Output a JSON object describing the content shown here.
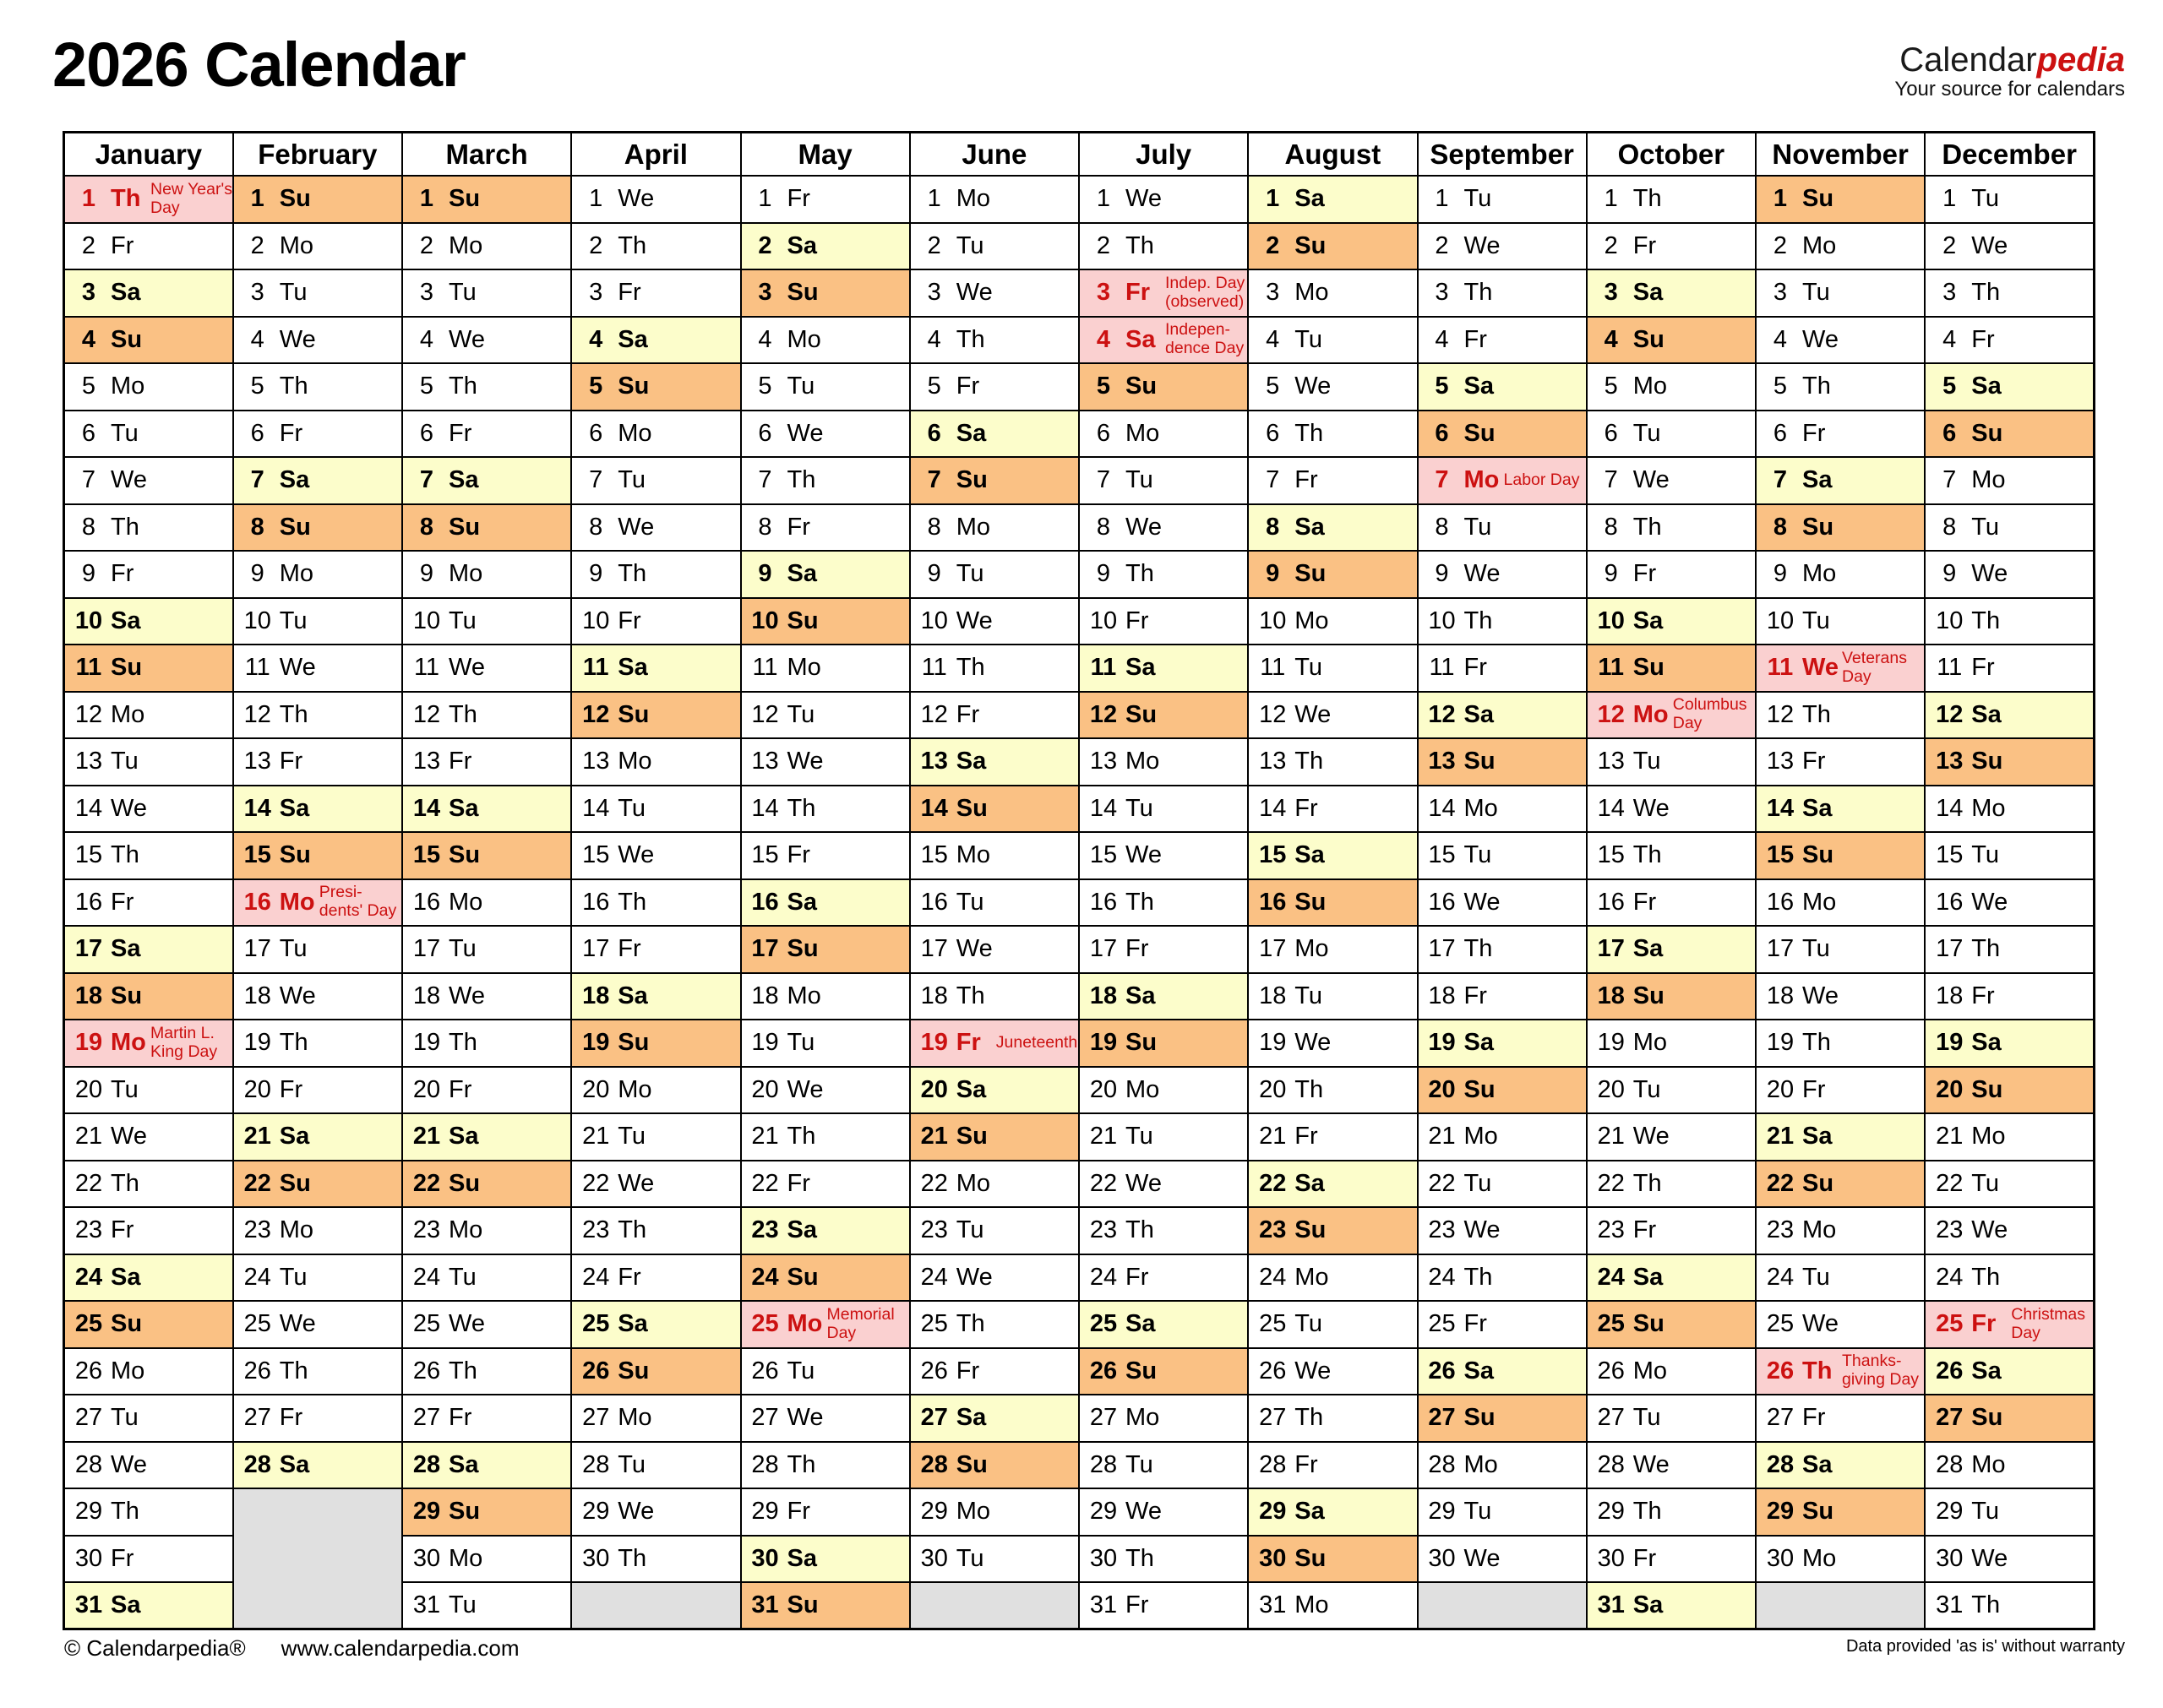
{
  "page": {
    "title": "2026 Calendar",
    "logo": {
      "part1": "Calendar",
      "part2": "pedia",
      "tagline": "Your source for calendars"
    },
    "footer": {
      "copyright": "© Calendarpedia®",
      "url": "www.calendarpedia.com",
      "disclaimer": "Data provided 'as is' without warranty"
    }
  },
  "colors": {
    "saturday_bg": "#FCFDCB",
    "sunday_bg": "#FAC184",
    "holiday_bg": "#FAD0D0",
    "holiday_text": "#CC1111",
    "filler_bg": "#E0E0E0",
    "border": "#000000",
    "logo_accent": "#CC1111"
  },
  "calendar": {
    "year": "2026",
    "max_rows": 31,
    "months": [
      {
        "name": "January",
        "days": [
          "Th",
          "Fr",
          "Sa",
          "Su",
          "Mo",
          "Tu",
          "We",
          "Th",
          "Fr",
          "Sa",
          "Su",
          "Mo",
          "Tu",
          "We",
          "Th",
          "Fr",
          "Sa",
          "Su",
          "Mo",
          "Tu",
          "We",
          "Th",
          "Fr",
          "Sa",
          "Su",
          "Mo",
          "Tu",
          "We",
          "Th",
          "Fr",
          "Sa"
        ],
        "holidays": {
          "1": [
            "New Year's",
            "Day"
          ],
          "19": [
            "Martin L.",
            "King Day"
          ]
        }
      },
      {
        "name": "February",
        "days": [
          "Su",
          "Mo",
          "Tu",
          "We",
          "Th",
          "Fr",
          "Sa",
          "Su",
          "Mo",
          "Tu",
          "We",
          "Th",
          "Fr",
          "Sa",
          "Su",
          "Mo",
          "Tu",
          "We",
          "Th",
          "Fr",
          "Sa",
          "Su",
          "Mo",
          "Tu",
          "We",
          "Th",
          "Fr",
          "Sa"
        ],
        "holidays": {
          "16": [
            "Presi-",
            "dents' Day"
          ]
        }
      },
      {
        "name": "March",
        "days": [
          "Su",
          "Mo",
          "Tu",
          "We",
          "Th",
          "Fr",
          "Sa",
          "Su",
          "Mo",
          "Tu",
          "We",
          "Th",
          "Fr",
          "Sa",
          "Su",
          "Mo",
          "Tu",
          "We",
          "Th",
          "Fr",
          "Sa",
          "Su",
          "Mo",
          "Tu",
          "We",
          "Th",
          "Fr",
          "Sa",
          "Su",
          "Mo",
          "Tu"
        ],
        "holidays": {}
      },
      {
        "name": "April",
        "days": [
          "We",
          "Th",
          "Fr",
          "Sa",
          "Su",
          "Mo",
          "Tu",
          "We",
          "Th",
          "Fr",
          "Sa",
          "Su",
          "Mo",
          "Tu",
          "We",
          "Th",
          "Fr",
          "Sa",
          "Su",
          "Mo",
          "Tu",
          "We",
          "Th",
          "Fr",
          "Sa",
          "Su",
          "Mo",
          "Tu",
          "We",
          "Th"
        ],
        "holidays": {}
      },
      {
        "name": "May",
        "days": [
          "Fr",
          "Sa",
          "Su",
          "Mo",
          "Tu",
          "We",
          "Th",
          "Fr",
          "Sa",
          "Su",
          "Mo",
          "Tu",
          "We",
          "Th",
          "Fr",
          "Sa",
          "Su",
          "Mo",
          "Tu",
          "We",
          "Th",
          "Fr",
          "Sa",
          "Su",
          "Mo",
          "Tu",
          "We",
          "Th",
          "Fr",
          "Sa",
          "Su"
        ],
        "holidays": {
          "25": [
            "Memorial",
            "Day"
          ]
        }
      },
      {
        "name": "June",
        "days": [
          "Mo",
          "Tu",
          "We",
          "Th",
          "Fr",
          "Sa",
          "Su",
          "Mo",
          "Tu",
          "We",
          "Th",
          "Fr",
          "Sa",
          "Su",
          "Mo",
          "Tu",
          "We",
          "Th",
          "Fr",
          "Sa",
          "Su",
          "Mo",
          "Tu",
          "We",
          "Th",
          "Fr",
          "Sa",
          "Su",
          "Mo",
          "Tu"
        ],
        "holidays": {
          "19": [
            "Juneteenth"
          ]
        }
      },
      {
        "name": "July",
        "days": [
          "We",
          "Th",
          "Fr",
          "Sa",
          "Su",
          "Mo",
          "Tu",
          "We",
          "Th",
          "Fr",
          "Sa",
          "Su",
          "Mo",
          "Tu",
          "We",
          "Th",
          "Fr",
          "Sa",
          "Su",
          "Mo",
          "Tu",
          "We",
          "Th",
          "Fr",
          "Sa",
          "Su",
          "Mo",
          "Tu",
          "We",
          "Th",
          "Fr"
        ],
        "holidays": {
          "3": [
            "Indep. Day",
            "(observed)"
          ],
          "4": [
            "Indepen-",
            "dence Day"
          ]
        }
      },
      {
        "name": "August",
        "days": [
          "Sa",
          "Su",
          "Mo",
          "Tu",
          "We",
          "Th",
          "Fr",
          "Sa",
          "Su",
          "Mo",
          "Tu",
          "We",
          "Th",
          "Fr",
          "Sa",
          "Su",
          "Mo",
          "Tu",
          "We",
          "Th",
          "Fr",
          "Sa",
          "Su",
          "Mo",
          "Tu",
          "We",
          "Th",
          "Fr",
          "Sa",
          "Su",
          "Mo"
        ],
        "holidays": {}
      },
      {
        "name": "September",
        "days": [
          "Tu",
          "We",
          "Th",
          "Fr",
          "Sa",
          "Su",
          "Mo",
          "Tu",
          "We",
          "Th",
          "Fr",
          "Sa",
          "Su",
          "Mo",
          "Tu",
          "We",
          "Th",
          "Fr",
          "Sa",
          "Su",
          "Mo",
          "Tu",
          "We",
          "Th",
          "Fr",
          "Sa",
          "Su",
          "Mo",
          "Tu",
          "We"
        ],
        "holidays": {
          "7": [
            "Labor Day"
          ]
        }
      },
      {
        "name": "October",
        "days": [
          "Th",
          "Fr",
          "Sa",
          "Su",
          "Mo",
          "Tu",
          "We",
          "Th",
          "Fr",
          "Sa",
          "Su",
          "Mo",
          "Tu",
          "We",
          "Th",
          "Fr",
          "Sa",
          "Su",
          "Mo",
          "Tu",
          "We",
          "Th",
          "Fr",
          "Sa",
          "Su",
          "Mo",
          "Tu",
          "We",
          "Th",
          "Fr",
          "Sa"
        ],
        "holidays": {
          "12": [
            "Columbus",
            "Day"
          ]
        }
      },
      {
        "name": "November",
        "days": [
          "Su",
          "Mo",
          "Tu",
          "We",
          "Th",
          "Fr",
          "Sa",
          "Su",
          "Mo",
          "Tu",
          "We",
          "Th",
          "Fr",
          "Sa",
          "Su",
          "Mo",
          "Tu",
          "We",
          "Th",
          "Fr",
          "Sa",
          "Su",
          "Mo",
          "Tu",
          "We",
          "Th",
          "Fr",
          "Sa",
          "Su",
          "Mo"
        ],
        "holidays": {
          "11": [
            "Veterans",
            "Day"
          ],
          "26": [
            "Thanks-",
            "giving Day"
          ]
        }
      },
      {
        "name": "December",
        "days": [
          "Tu",
          "We",
          "Th",
          "Fr",
          "Sa",
          "Su",
          "Mo",
          "Tu",
          "We",
          "Th",
          "Fr",
          "Sa",
          "Su",
          "Mo",
          "Tu",
          "We",
          "Th",
          "Fr",
          "Sa",
          "Su",
          "Mo",
          "Tu",
          "We",
          "Th",
          "Fr",
          "Sa",
          "Su",
          "Mo",
          "Tu",
          "We",
          "Th"
        ],
        "holidays": {
          "25": [
            "Christmas",
            "Day"
          ]
        }
      }
    ]
  }
}
